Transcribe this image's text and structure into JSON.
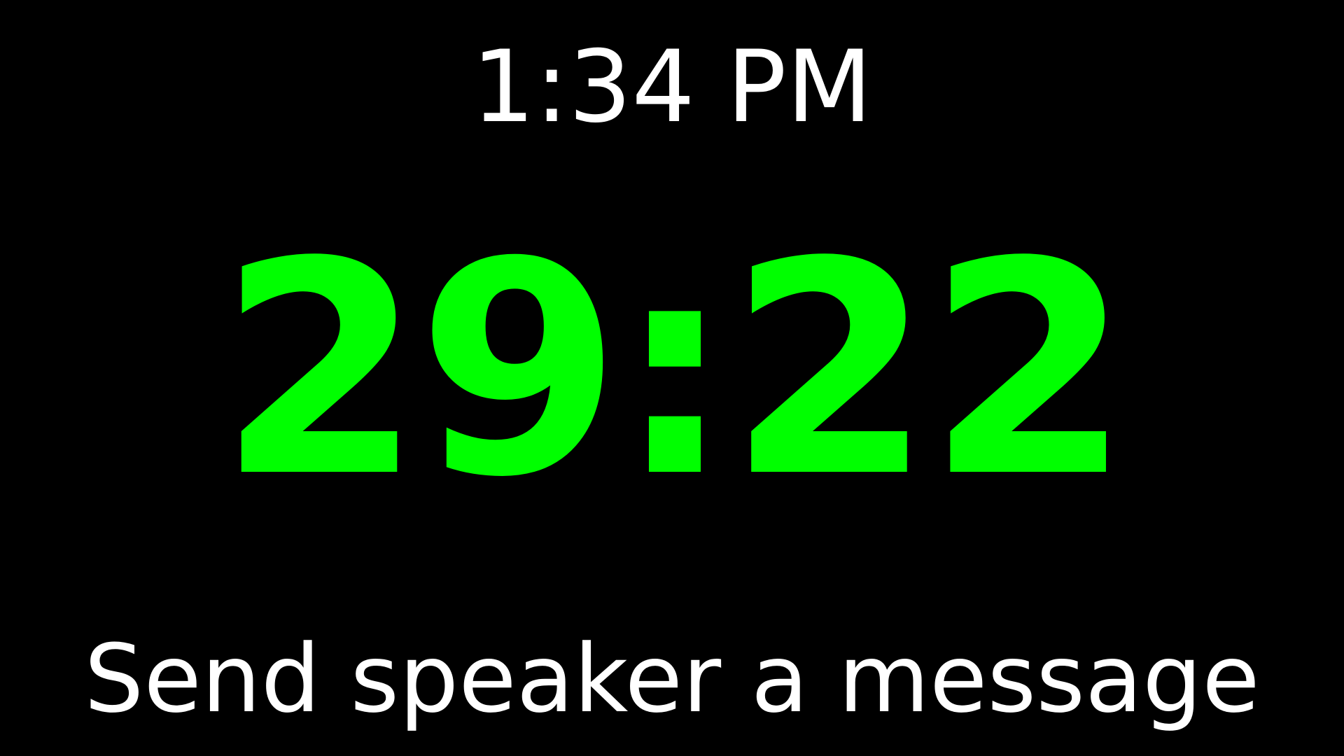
{
  "clock": {
    "time": "1:34 PM"
  },
  "countdown": {
    "value": "29:22",
    "color": "#00ff00"
  },
  "message": {
    "text": "Send speaker a message"
  },
  "colors": {
    "background": "#000000",
    "text": "#ffffff"
  }
}
